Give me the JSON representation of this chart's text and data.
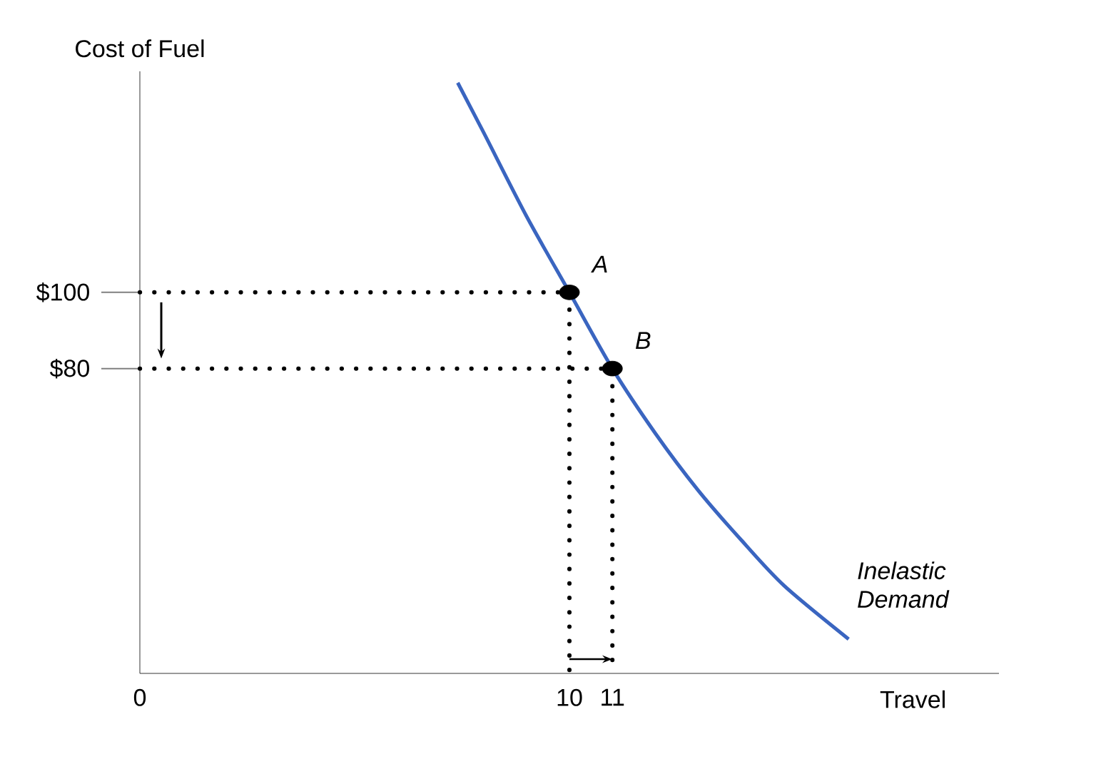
{
  "chart_data": {
    "type": "line",
    "xlabel": "Travel",
    "ylabel": "Cost of Fuel",
    "xlim": [
      0,
      20
    ],
    "ylim": [
      0,
      158
    ],
    "xticks": [
      0,
      10,
      11
    ],
    "yticks": [
      {
        "value": 100,
        "label": "$100"
      },
      {
        "value": 80,
        "label": "$80"
      }
    ],
    "series": [
      {
        "name": "Inelastic Demand",
        "color": "#3a65c0",
        "x": [
          7.4,
          8,
          9,
          10,
          11,
          12,
          13,
          14,
          15,
          16.5
        ],
        "values": [
          155,
          142,
          120,
          100,
          80,
          63,
          48,
          35,
          23,
          9
        ]
      },
      {
        "type": "line",
        "line_style": "dotted",
        "color": "#000000",
        "x": [
          0,
          10,
          10
        ],
        "values": [
          100,
          100,
          0
        ]
      },
      {
        "type": "line",
        "line_style": "dotted",
        "color": "#000000",
        "x": [
          0,
          11,
          11
        ],
        "values": [
          80,
          80,
          0
        ]
      },
      {
        "type": "scatter",
        "color": "#000000",
        "x": [
          10,
          11
        ],
        "values": [
          100,
          80
        ]
      }
    ],
    "annotations": [
      {
        "text": "A",
        "x": 10,
        "y": 100
      },
      {
        "text": "B",
        "x": 11,
        "y": 80
      }
    ]
  }
}
